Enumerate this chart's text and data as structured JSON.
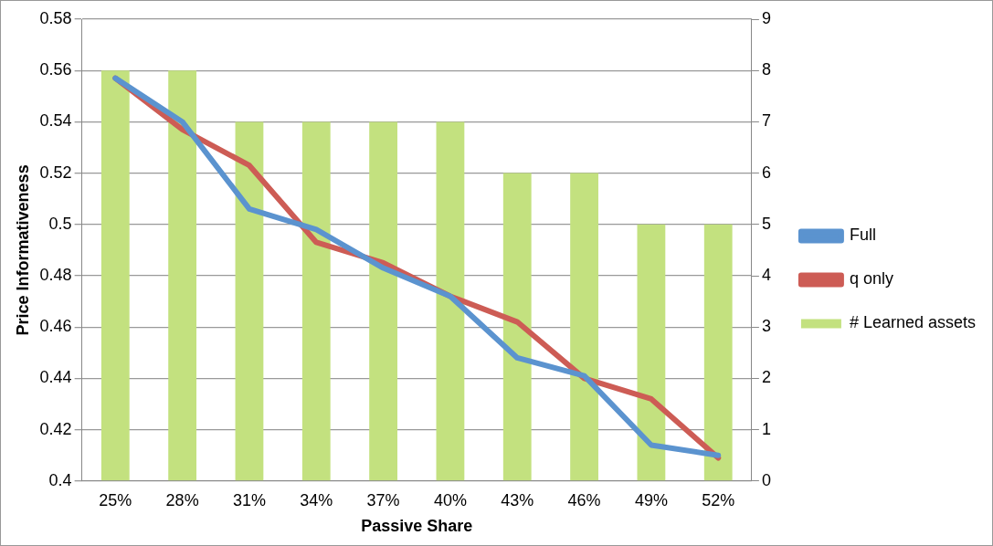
{
  "chart_data": {
    "type": "line",
    "xlabel": "Passive Share",
    "ylabel": "Price Informativeness",
    "categories": [
      "25%",
      "28%",
      "31%",
      "34%",
      "37%",
      "40%",
      "43%",
      "46%",
      "49%",
      "52%"
    ],
    "series": [
      {
        "name": "Full",
        "color": "#5b93cf",
        "values": [
          0.557,
          0.54,
          0.506,
          0.498,
          0.483,
          0.472,
          0.448,
          0.441,
          0.414,
          0.41
        ]
      },
      {
        "name": "q only",
        "color": "#cd5c55",
        "values": [
          0.557,
          0.537,
          0.523,
          0.493,
          0.485,
          0.472,
          0.462,
          0.44,
          0.432,
          0.409
        ]
      },
      {
        "name": "# Learned assets",
        "type": "bar",
        "axis": "y2",
        "color": "#c3e17f",
        "values": [
          8,
          8,
          7,
          7,
          7,
          7,
          6,
          6,
          5,
          5
        ]
      }
    ],
    "ylim": [
      0.4,
      0.58
    ],
    "yticks": [
      0.4,
      0.42,
      0.44,
      0.46,
      0.48,
      0.5,
      0.52,
      0.54,
      0.56,
      0.58
    ],
    "y2lim": [
      0,
      9
    ],
    "y2ticks": [
      0,
      1,
      2,
      3,
      4,
      5,
      6,
      7,
      8,
      9
    ],
    "grid": "y",
    "legend": "right",
    "marker": "none",
    "line_style": "solid"
  }
}
